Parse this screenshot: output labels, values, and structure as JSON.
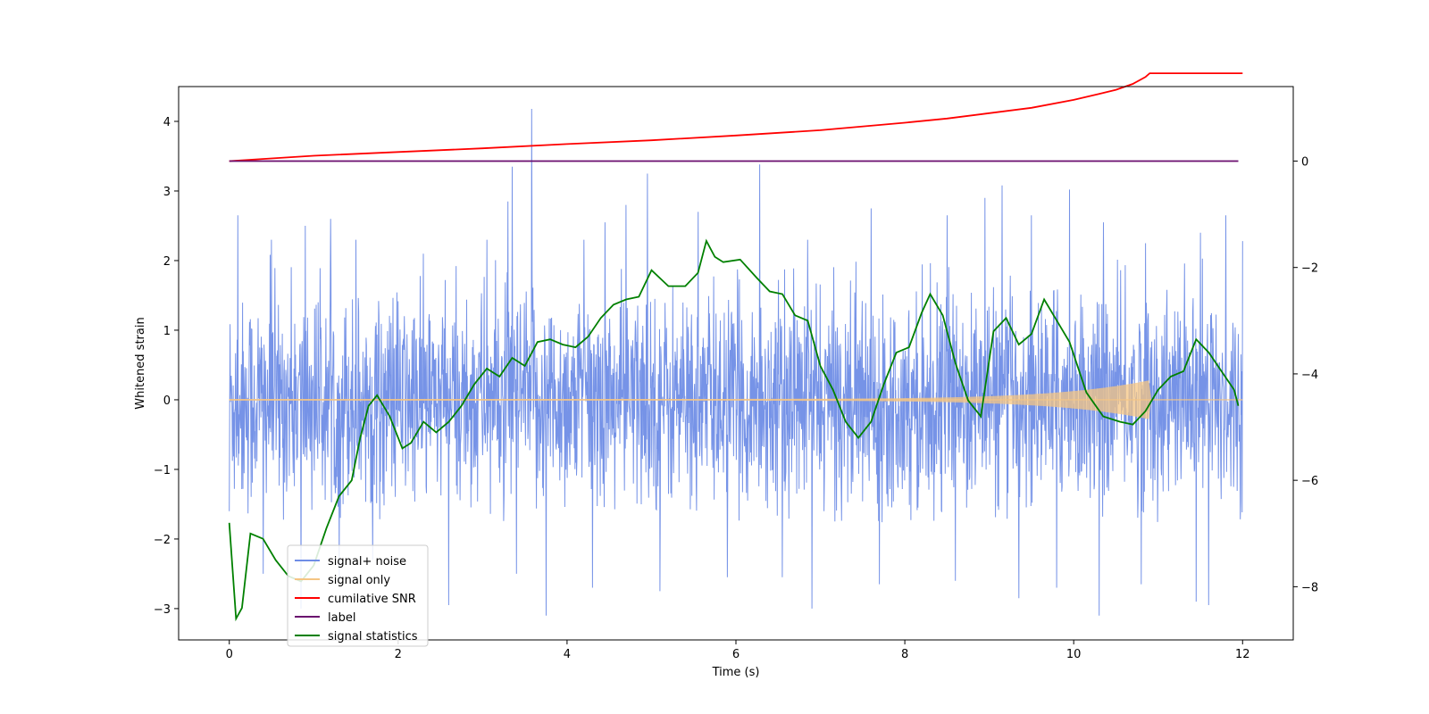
{
  "chart_data": {
    "type": "line",
    "title": "",
    "xlabel": "Time (s)",
    "ylabel": "Whitened strain",
    "ylabel_right": "",
    "xlim": [
      -0.6,
      12.6
    ],
    "ylim": [
      -3.45,
      4.5
    ],
    "ylim_right": [
      -9.0,
      1.4
    ],
    "grid": false,
    "legend_position": "lower-left",
    "x_ticks": [
      0,
      2,
      4,
      6,
      8,
      10,
      12
    ],
    "x_tick_labels": [
      "0",
      "2",
      "4",
      "6",
      "8",
      "10",
      "12"
    ],
    "y_ticks": [
      -3,
      -2,
      -1,
      0,
      1,
      2,
      3,
      4
    ],
    "y_tick_labels": [
      "−3",
      "−2",
      "−1",
      "0",
      "1",
      "2",
      "3",
      "4"
    ],
    "y_right_ticks": [
      -8,
      -6,
      -4,
      -2,
      0
    ],
    "y_right_tick_labels": [
      "−8",
      "−6",
      "−4",
      "−2",
      "0"
    ],
    "series": [
      {
        "name": "signal+ noise",
        "color": "#6f8de6",
        "axis": "left",
        "kind": "noise",
        "x_range": [
          0,
          12
        ],
        "typical_range": [
          -1.6,
          1.9
        ],
        "peaks": [
          {
            "x": 0.1,
            "y": 2.65
          },
          {
            "x": 0.5,
            "y": 2.3
          },
          {
            "x": 0.9,
            "y": 2.5
          },
          {
            "x": 1.2,
            "y": 2.6
          },
          {
            "x": 1.5,
            "y": 2.3
          },
          {
            "x": 2.3,
            "y": 2.1
          },
          {
            "x": 3.05,
            "y": 2.3
          },
          {
            "x": 3.3,
            "y": 2.85
          },
          {
            "x": 3.35,
            "y": 3.35
          },
          {
            "x": 3.58,
            "y": 4.18
          },
          {
            "x": 4.2,
            "y": 2.3
          },
          {
            "x": 4.45,
            "y": 2.55
          },
          {
            "x": 4.7,
            "y": 2.8
          },
          {
            "x": 4.95,
            "y": 3.25
          },
          {
            "x": 5.55,
            "y": 2.7
          },
          {
            "x": 6.28,
            "y": 3.38
          },
          {
            "x": 6.85,
            "y": 2.3
          },
          {
            "x": 7.6,
            "y": 2.75
          },
          {
            "x": 8.5,
            "y": 2.65
          },
          {
            "x": 8.95,
            "y": 2.9
          },
          {
            "x": 9.15,
            "y": 3.08
          },
          {
            "x": 9.5,
            "y": 2.65
          },
          {
            "x": 9.95,
            "y": 3.02
          },
          {
            "x": 10.35,
            "y": 2.55
          },
          {
            "x": 10.85,
            "y": 2.25
          },
          {
            "x": 11.5,
            "y": 2.4
          },
          {
            "x": 11.8,
            "y": 2.65
          },
          {
            "x": 12.0,
            "y": 2.28
          }
        ],
        "troughs": [
          {
            "x": 0.0,
            "y": -1.6
          },
          {
            "x": 0.4,
            "y": -2.5
          },
          {
            "x": 0.85,
            "y": -3.0
          },
          {
            "x": 1.3,
            "y": -2.6
          },
          {
            "x": 1.7,
            "y": -2.3
          },
          {
            "x": 2.6,
            "y": -2.95
          },
          {
            "x": 3.4,
            "y": -2.5
          },
          {
            "x": 3.75,
            "y": -3.1
          },
          {
            "x": 4.3,
            "y": -2.7
          },
          {
            "x": 5.1,
            "y": -2.75
          },
          {
            "x": 5.9,
            "y": -2.55
          },
          {
            "x": 6.55,
            "y": -2.55
          },
          {
            "x": 6.9,
            "y": -3.0
          },
          {
            "x": 7.7,
            "y": -2.65
          },
          {
            "x": 8.6,
            "y": -2.6
          },
          {
            "x": 9.35,
            "y": -2.85
          },
          {
            "x": 9.8,
            "y": -2.7
          },
          {
            "x": 10.3,
            "y": -3.1
          },
          {
            "x": 10.8,
            "y": -2.65
          },
          {
            "x": 11.45,
            "y": -2.9
          },
          {
            "x": 11.6,
            "y": -2.95
          }
        ]
      },
      {
        "name": "signal only",
        "color": "#f5c583",
        "axis": "left",
        "kind": "chirp",
        "x_range": [
          0,
          12
        ],
        "merger_time": 10.9,
        "amplitude_start": 0.012,
        "amplitude_peak": 0.28
      },
      {
        "name": "cumilative SNR",
        "color": "#ff0000",
        "axis": "right",
        "x": [
          0,
          1,
          2,
          3,
          4,
          5,
          6,
          7,
          8,
          8.5,
          9,
          9.5,
          10,
          10.3,
          10.5,
          10.7,
          10.85,
          10.9,
          12
        ],
        "values": [
          0,
          0.1,
          0.17,
          0.24,
          0.32,
          0.39,
          0.48,
          0.58,
          0.72,
          0.8,
          0.9,
          1.0,
          1.15,
          1.26,
          1.34,
          1.45,
          1.58,
          1.65,
          1.65
        ]
      },
      {
        "name": "label",
        "color": "#6a0d6e",
        "axis": "right",
        "x": [
          0,
          11.95
        ],
        "values": [
          0,
          0
        ]
      },
      {
        "name": "signal statistics",
        "color": "#008000",
        "axis": "right",
        "x": [
          0.0,
          0.08,
          0.15,
          0.25,
          0.4,
          0.55,
          0.7,
          0.85,
          1.0,
          1.15,
          1.3,
          1.45,
          1.55,
          1.65,
          1.75,
          1.9,
          2.05,
          2.15,
          2.3,
          2.45,
          2.6,
          2.75,
          2.9,
          3.05,
          3.2,
          3.35,
          3.5,
          3.65,
          3.8,
          3.95,
          4.1,
          4.25,
          4.4,
          4.55,
          4.7,
          4.85,
          5.0,
          5.2,
          5.4,
          5.55,
          5.65,
          5.75,
          5.85,
          6.05,
          6.25,
          6.4,
          6.55,
          6.7,
          6.85,
          7.0,
          7.15,
          7.3,
          7.45,
          7.6,
          7.75,
          7.9,
          8.05,
          8.2,
          8.3,
          8.45,
          8.6,
          8.75,
          8.9,
          9.05,
          9.2,
          9.35,
          9.5,
          9.65,
          9.8,
          9.95,
          10.15,
          10.35,
          10.55,
          10.7,
          10.85,
          11.0,
          11.15,
          11.3,
          11.45,
          11.6,
          11.75,
          11.9,
          11.95
        ],
        "values": [
          -6.8,
          -8.6,
          -8.4,
          -7.0,
          -7.1,
          -7.5,
          -7.8,
          -7.9,
          -7.6,
          -6.9,
          -6.3,
          -6.0,
          -5.2,
          -4.6,
          -4.4,
          -4.8,
          -5.4,
          -5.3,
          -4.9,
          -5.1,
          -4.9,
          -4.6,
          -4.2,
          -3.9,
          -4.05,
          -3.7,
          -3.85,
          -3.4,
          -3.35,
          -3.45,
          -3.5,
          -3.3,
          -2.95,
          -2.7,
          -2.6,
          -2.55,
          -2.05,
          -2.35,
          -2.35,
          -2.1,
          -1.5,
          -1.8,
          -1.9,
          -1.85,
          -2.2,
          -2.45,
          -2.5,
          -2.9,
          -3.0,
          -3.85,
          -4.3,
          -4.9,
          -5.2,
          -4.9,
          -4.2,
          -3.6,
          -3.5,
          -2.85,
          -2.5,
          -2.9,
          -3.8,
          -4.5,
          -4.8,
          -3.2,
          -2.95,
          -3.45,
          -3.25,
          -2.6,
          -3.0,
          -3.4,
          -4.35,
          -4.8,
          -4.9,
          -4.95,
          -4.7,
          -4.3,
          -4.05,
          -3.95,
          -3.35,
          -3.6,
          -3.95,
          -4.3,
          -4.6
        ]
      }
    ]
  }
}
